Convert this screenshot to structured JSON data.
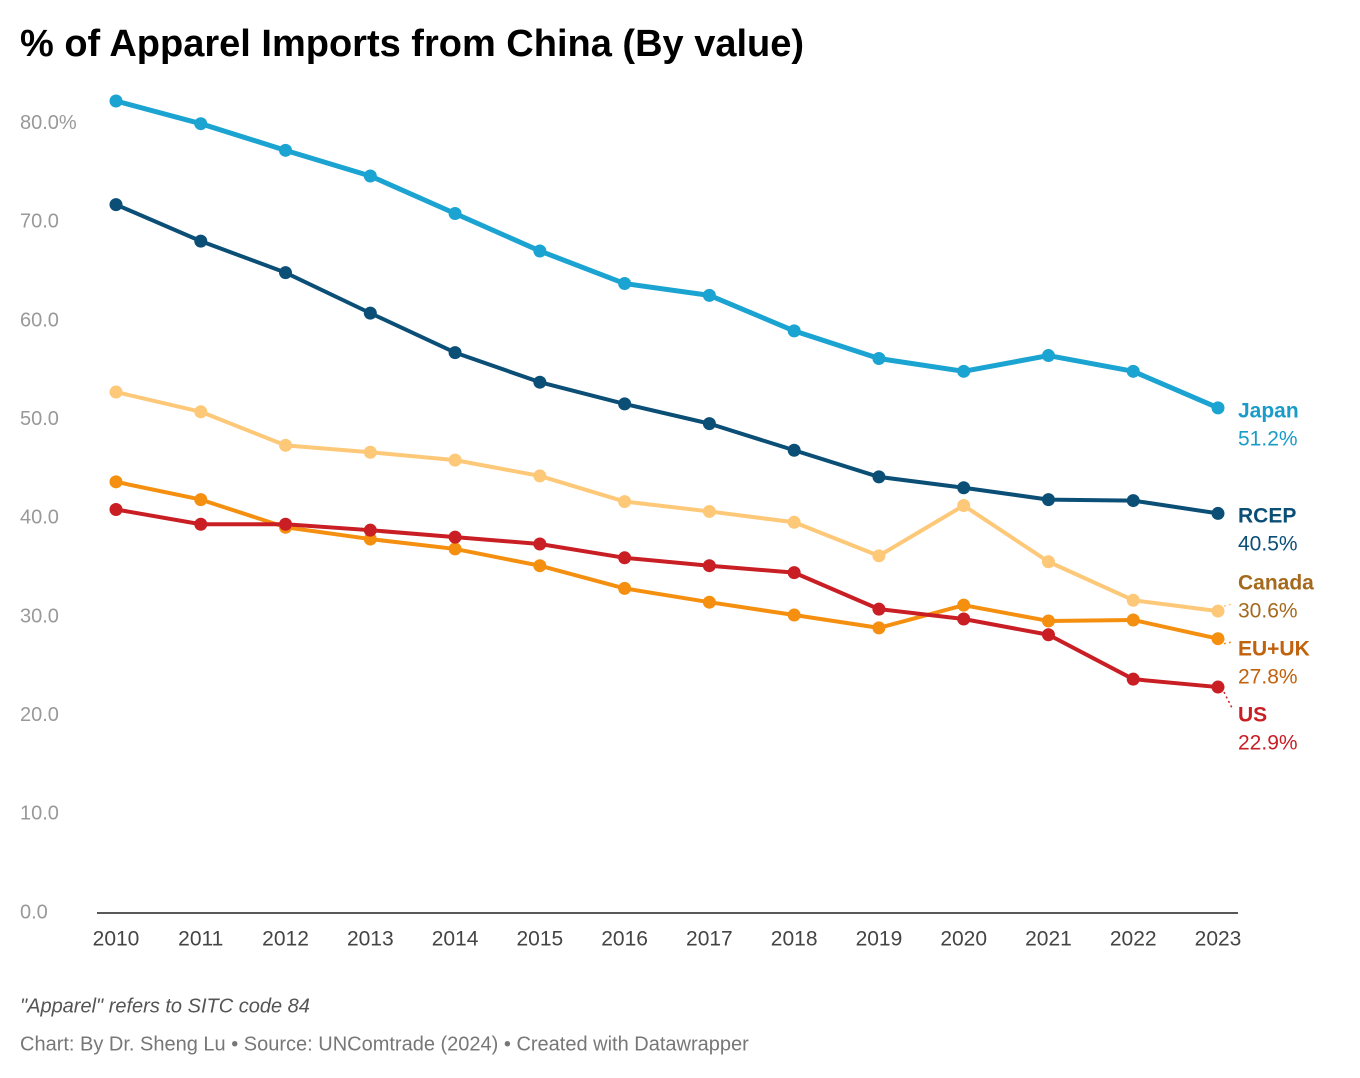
{
  "chart_data": {
    "type": "line",
    "title": "% of Apparel Imports from China (By value)",
    "note": "\"Apparel\" refers to SITC code 84",
    "credit": "Chart: By Dr. Sheng Lu • Source: UNComtrade (2024) • Created with Datawrapper",
    "categories": [
      "2010",
      "2011",
      "2012",
      "2013",
      "2014",
      "2015",
      "2016",
      "2017",
      "2018",
      "2019",
      "2020",
      "2021",
      "2022",
      "2023"
    ],
    "ylim": [
      0,
      82.3
    ],
    "yticks": [
      {
        "value": 0,
        "label": "0.0"
      },
      {
        "value": 10,
        "label": "10.0"
      },
      {
        "value": 20,
        "label": "20.0"
      },
      {
        "value": 30,
        "label": "30.0"
      },
      {
        "value": 40,
        "label": "40.0"
      },
      {
        "value": 50,
        "label": "50.0"
      },
      {
        "value": 60,
        "label": "60.0"
      },
      {
        "value": 70,
        "label": "70.0"
      },
      {
        "value": 80,
        "label": "80.0%"
      }
    ],
    "grid": false,
    "series": [
      {
        "name": "Japan",
        "color": "#1ba3d1",
        "label_color": "#1a9bc8",
        "values": [
          82.3,
          80.0,
          77.3,
          74.7,
          70.9,
          67.1,
          63.8,
          62.6,
          59.0,
          56.2,
          54.9,
          56.5,
          54.9,
          51.2
        ],
        "value_labels": [
          null,
          null,
          null,
          null,
          null,
          null,
          null,
          null,
          null,
          null,
          null,
          null,
          null,
          "51.2%"
        ]
      },
      {
        "name": "RCEP",
        "color": "#0b4f77",
        "label_color": "#0b4f77",
        "values": [
          71.8,
          68.1,
          64.9,
          60.8,
          56.8,
          53.8,
          51.6,
          49.6,
          46.9,
          44.2,
          43.1,
          41.9,
          41.8,
          40.5
        ],
        "value_labels": [
          null,
          null,
          null,
          null,
          null,
          null,
          null,
          null,
          null,
          null,
          null,
          null,
          null,
          "40.5%"
        ]
      },
      {
        "name": "Canada",
        "color": "#fdc878",
        "label_color": "#a4691c",
        "values": [
          52.8,
          50.8,
          47.4,
          46.7,
          45.9,
          44.3,
          41.7,
          40.7,
          39.6,
          36.2,
          41.3,
          35.6,
          31.7,
          30.6
        ],
        "value_labels": [
          null,
          null,
          null,
          null,
          null,
          null,
          null,
          null,
          null,
          null,
          null,
          null,
          null,
          "30.6%"
        ]
      },
      {
        "name": "EU+UK",
        "color": "#f58f10",
        "label_color": "#c0620e",
        "values": [
          43.7,
          41.9,
          39.1,
          37.9,
          36.9,
          35.2,
          32.9,
          31.5,
          30.2,
          28.9,
          31.2,
          29.6,
          29.7,
          27.8
        ],
        "value_labels": [
          null,
          null,
          null,
          null,
          null,
          null,
          null,
          null,
          null,
          null,
          null,
          null,
          null,
          "27.8%"
        ]
      },
      {
        "name": "US",
        "color": "#c81e24",
        "label_color": "#c81e24",
        "values": [
          40.9,
          39.4,
          39.4,
          38.8,
          38.1,
          37.4,
          36.0,
          35.2,
          34.5,
          30.8,
          29.8,
          28.2,
          23.7,
          22.9
        ],
        "value_labels": [
          null,
          null,
          null,
          null,
          null,
          null,
          null,
          null,
          null,
          null,
          null,
          null,
          null,
          "22.9%"
        ]
      }
    ]
  }
}
